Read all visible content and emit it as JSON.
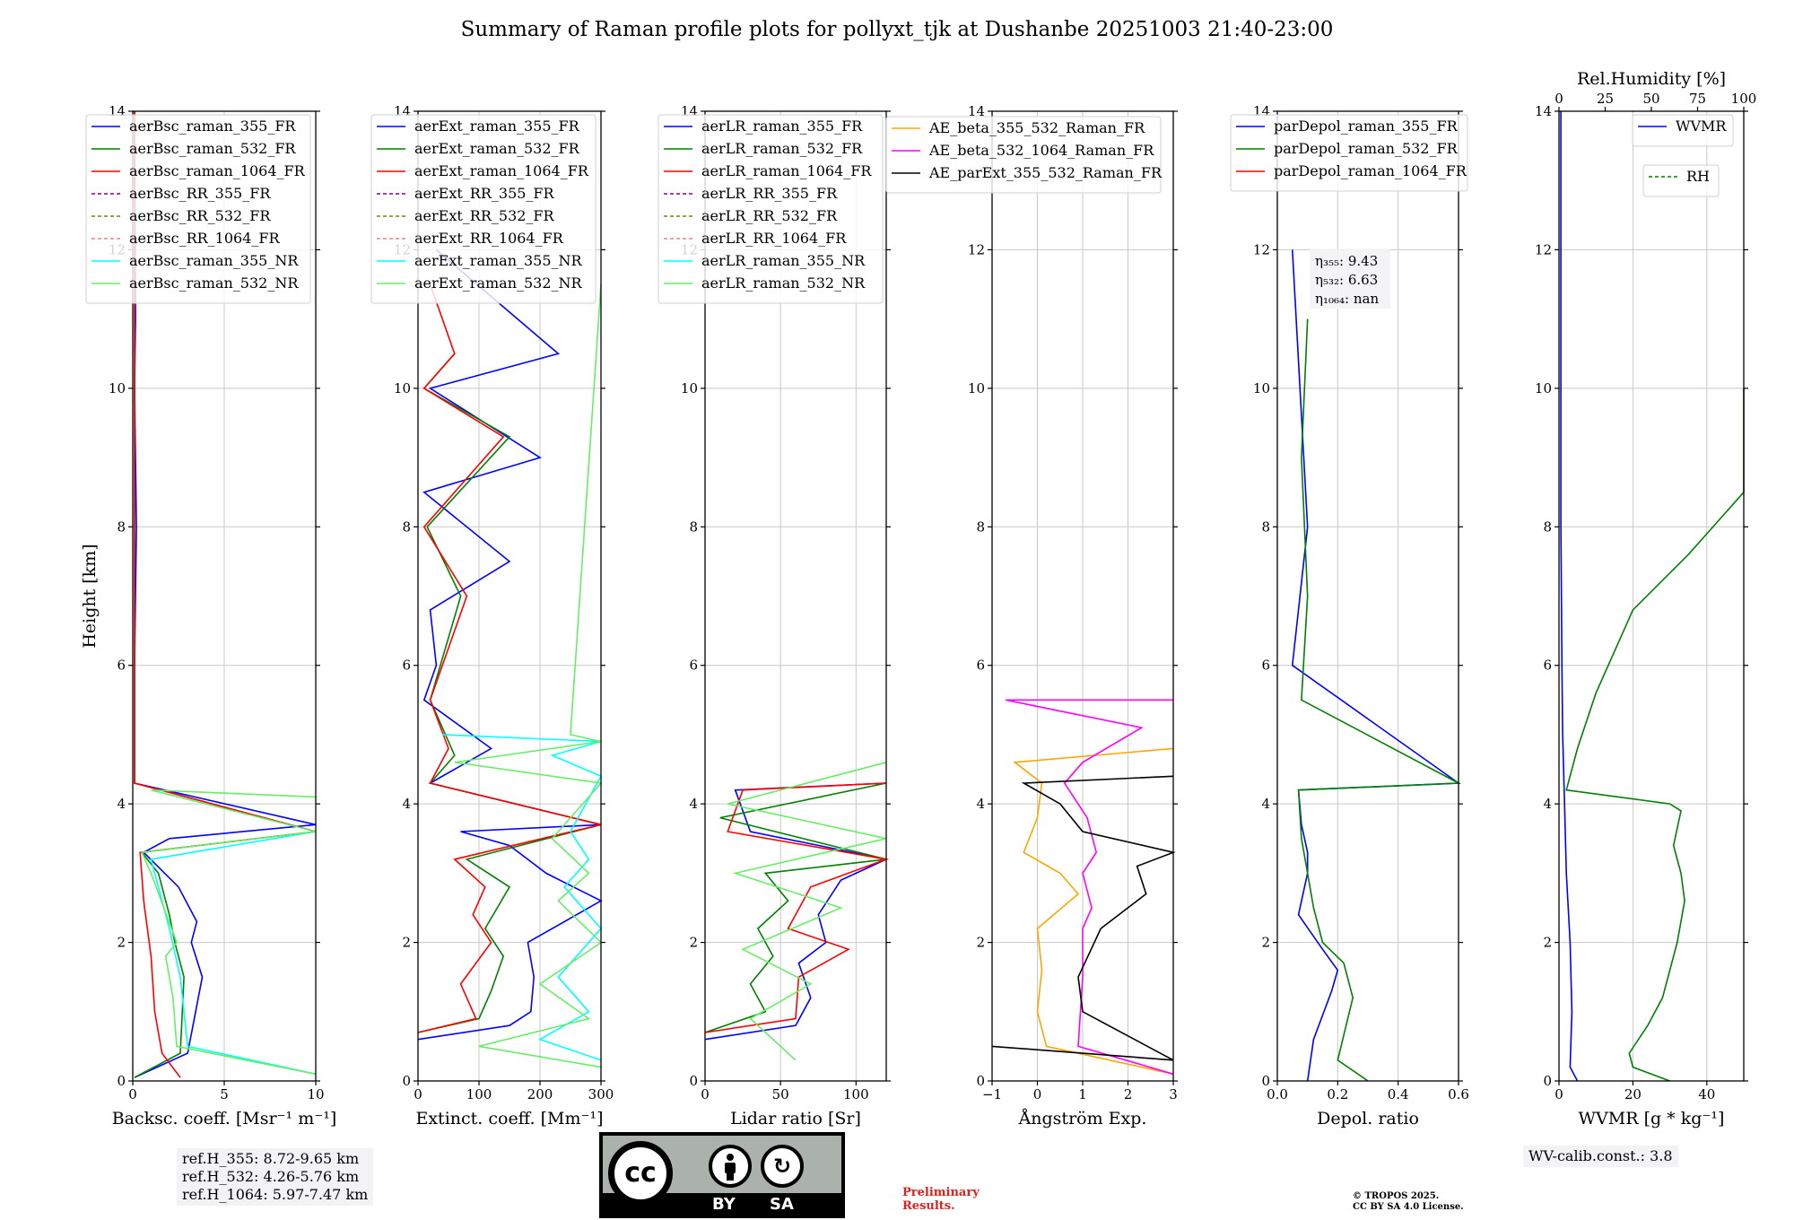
{
  "title": "Summary of Raman profile plots for pollyxt_tjk at Dushanbe 20251003 21:40-23:00",
  "chart_data": [
    {
      "type": "line",
      "id": "bsc",
      "xlabel": "Backsc. coeff. [Msr⁻¹ m⁻¹]",
      "ylabel": "Height [km]",
      "xlim": [
        0,
        10
      ],
      "ylim": [
        0,
        14
      ],
      "xticks": [
        0,
        5,
        10
      ],
      "yticks": [
        0,
        2,
        4,
        6,
        8,
        10,
        12,
        14
      ],
      "grid": true,
      "legend": "top",
      "series": [
        {
          "name": "aerBsc_raman_355_FR",
          "color": "#0000ff",
          "dash": false,
          "x": [
            0.1,
            3.0,
            3.8,
            3.2,
            3.5,
            2.5,
            0.6,
            2.0,
            10.0,
            0.1,
            0.1,
            0.2,
            0.1,
            0.15,
            0.1
          ],
          "y": [
            0.05,
            0.4,
            1.5,
            2.0,
            2.3,
            2.8,
            3.3,
            3.5,
            3.7,
            4.3,
            6.0,
            8.0,
            10.0,
            11.0,
            14.0
          ]
        },
        {
          "name": "aerBsc_raman_532_FR",
          "color": "#008000",
          "dash": false,
          "x": [
            0.1,
            2.6,
            2.8,
            2.3,
            2.0,
            1.4,
            0.5,
            10.0,
            0.1,
            0.1,
            0.1
          ],
          "y": [
            0.05,
            0.4,
            1.5,
            2.0,
            2.4,
            3.0,
            3.3,
            3.6,
            4.3,
            8.0,
            14.0
          ]
        },
        {
          "name": "aerBsc_raman_1064_FR",
          "color": "#ff0000",
          "dash": false,
          "x": [
            2.6,
            1.6,
            1.2,
            1.0,
            0.6,
            0.4,
            10.0,
            0.1,
            0.1,
            0.1
          ],
          "y": [
            0.05,
            0.4,
            1.0,
            1.8,
            2.6,
            3.3,
            3.6,
            4.3,
            8.0,
            14.0
          ]
        },
        {
          "name": "aerBsc_RR_355_FR",
          "color": "#800080",
          "dash": true,
          "x": [],
          "y": []
        },
        {
          "name": "aerBsc_RR_532_FR",
          "color": "#808000",
          "dash": true,
          "x": [],
          "y": []
        },
        {
          "name": "aerBsc_RR_1064_FR",
          "color": "#f08080",
          "dash": true,
          "x": [],
          "y": []
        },
        {
          "name": "aerBsc_raman_355_NR",
          "color": "#00ffff",
          "dash": false,
          "x": [
            10.0,
            3.0,
            2.6,
            2.0,
            1.0,
            10.0
          ],
          "y": [
            0.1,
            0.5,
            1.5,
            2.2,
            3.2,
            3.6
          ]
        },
        {
          "name": "aerBsc_raman_532_NR",
          "color": "#66ee66",
          "dash": false,
          "x": [
            10.0,
            2.4,
            2.2,
            1.8,
            2.4,
            1.0,
            0.5,
            10.0,
            1.0,
            10.0
          ],
          "y": [
            0.1,
            0.5,
            1.2,
            1.8,
            2.0,
            3.0,
            3.3,
            3.6,
            4.2,
            4.1
          ]
        }
      ]
    },
    {
      "type": "line",
      "id": "ext",
      "xlabel": "Extinct. coeff. [Mm⁻¹]",
      "xlim": [
        0,
        300
      ],
      "ylim": [
        0,
        14
      ],
      "xticks": [
        0,
        100,
        200,
        300
      ],
      "yticks": [
        0,
        2,
        4,
        6,
        8,
        10,
        12,
        14
      ],
      "grid": true,
      "legend": "top",
      "series": [
        {
          "name": "aerExt_raman_355_FR",
          "color": "#0000ff",
          "dash": false,
          "x": [
            0,
            150,
            185,
            190,
            180,
            300,
            210,
            150,
            70,
            300,
            20,
            120,
            10,
            30,
            20,
            150,
            10,
            200,
            20,
            230,
            30
          ],
          "y": [
            0.6,
            0.8,
            1.0,
            1.5,
            2.0,
            2.6,
            3.0,
            3.4,
            3.6,
            3.7,
            4.3,
            4.8,
            5.5,
            6.0,
            6.8,
            7.5,
            8.5,
            9.0,
            10.0,
            10.5,
            12.0
          ]
        },
        {
          "name": "aerExt_raman_532_FR",
          "color": "#008000",
          "dash": false,
          "x": [
            0,
            100,
            120,
            140,
            110,
            150,
            80,
            300,
            20,
            60,
            20,
            70,
            15,
            150,
            10,
            60
          ],
          "y": [
            0.7,
            0.9,
            1.3,
            1.8,
            2.2,
            2.8,
            3.2,
            3.7,
            4.3,
            4.7,
            5.5,
            7.0,
            8.0,
            9.3,
            10.0,
            10.5
          ]
        },
        {
          "name": "aerExt_raman_1064_FR",
          "color": "#ff0000",
          "dash": false,
          "x": [
            0,
            95,
            70,
            120,
            90,
            110,
            60,
            300,
            20,
            50,
            20,
            80,
            10,
            140,
            10,
            60,
            20
          ],
          "y": [
            0.7,
            0.9,
            1.4,
            2.0,
            2.4,
            2.8,
            3.2,
            3.7,
            4.3,
            4.8,
            5.5,
            7.0,
            8.0,
            9.3,
            10.0,
            10.5,
            11.5
          ]
        },
        {
          "name": "aerExt_RR_355_FR",
          "color": "#800080",
          "dash": true,
          "x": [],
          "y": []
        },
        {
          "name": "aerExt_RR_532_FR",
          "color": "#808000",
          "dash": true,
          "x": [],
          "y": []
        },
        {
          "name": "aerExt_RR_1064_FR",
          "color": "#f08080",
          "dash": true,
          "x": [],
          "y": []
        },
        {
          "name": "aerExt_raman_355_NR",
          "color": "#00ffff",
          "dash": false,
          "x": [
            300,
            200,
            280,
            230,
            300,
            240,
            280,
            250,
            300,
            220,
            300,
            40
          ],
          "y": [
            0.3,
            0.6,
            1.0,
            1.5,
            2.2,
            2.8,
            3.2,
            3.6,
            4.4,
            4.7,
            4.9,
            5.0
          ]
        },
        {
          "name": "aerExt_raman_532_NR",
          "color": "#66ee66",
          "dash": false,
          "x": [
            300,
            100,
            280,
            200,
            300,
            230,
            280,
            220,
            300,
            60,
            300,
            250,
            300
          ],
          "y": [
            0.2,
            0.5,
            0.9,
            1.4,
            2.0,
            2.6,
            3.0,
            3.5,
            4.3,
            4.6,
            4.9,
            5.0,
            11.5
          ]
        }
      ]
    },
    {
      "type": "line",
      "id": "lr",
      "xlabel": "Lidar ratio [Sr]",
      "xlim": [
        0,
        120
      ],
      "ylim": [
        0,
        14
      ],
      "xticks": [
        0,
        50,
        100
      ],
      "yticks": [
        0,
        2,
        4,
        6,
        8,
        10,
        12,
        14
      ],
      "grid": true,
      "legend": "top",
      "series": [
        {
          "name": "aerLR_raman_355_FR",
          "color": "#0000ff",
          "dash": false,
          "x": [
            0,
            60,
            70,
            62,
            80,
            75,
            90,
            120,
            30,
            20,
            120
          ],
          "y": [
            0.6,
            0.8,
            1.2,
            1.7,
            2.0,
            2.4,
            2.9,
            3.2,
            3.6,
            4.2,
            4.3
          ]
        },
        {
          "name": "aerLR_raman_532_FR",
          "color": "#008000",
          "dash": false,
          "x": [
            0,
            40,
            30,
            45,
            35,
            55,
            40,
            120,
            10,
            120
          ],
          "y": [
            0.7,
            1.0,
            1.4,
            1.8,
            2.2,
            2.6,
            3.0,
            3.2,
            3.8,
            4.3
          ]
        },
        {
          "name": "aerLR_raman_1064_FR",
          "color": "#ff0000",
          "dash": false,
          "x": [
            0,
            60,
            62,
            95,
            55,
            70,
            120,
            15,
            25,
            120
          ],
          "y": [
            0.7,
            0.9,
            1.5,
            1.9,
            2.2,
            2.8,
            3.2,
            3.6,
            4.2,
            4.3
          ]
        },
        {
          "name": "aerLR_RR_355_FR",
          "color": "#800080",
          "dash": true,
          "x": [],
          "y": []
        },
        {
          "name": "aerLR_RR_532_FR",
          "color": "#808000",
          "dash": true,
          "x": [],
          "y": []
        },
        {
          "name": "aerLR_RR_1064_FR",
          "color": "#f08080",
          "dash": true,
          "x": [],
          "y": []
        },
        {
          "name": "aerLR_raman_355_NR",
          "color": "#00ffff",
          "dash": false,
          "x": [],
          "y": []
        },
        {
          "name": "aerLR_raman_532_NR",
          "color": "#66ee66",
          "dash": false,
          "x": [
            60,
            30,
            70,
            25,
            90,
            20,
            120,
            15,
            120
          ],
          "y": [
            0.3,
            0.9,
            1.4,
            1.9,
            2.5,
            3.0,
            3.5,
            4.0,
            4.6
          ]
        }
      ]
    },
    {
      "type": "line",
      "id": "ae",
      "xlabel": "Ångström Exp.",
      "xlim": [
        -1,
        3
      ],
      "ylim": [
        0,
        14
      ],
      "xticks": [
        -1,
        0,
        1,
        2,
        3
      ],
      "yticks": [
        0,
        2,
        4,
        6,
        8,
        10,
        12,
        14
      ],
      "grid": true,
      "legend": "top",
      "series": [
        {
          "name": "AE_beta_355_532_Raman_FR",
          "color": "#ffa500",
          "dash": false,
          "x": [
            3.0,
            0.2,
            0.0,
            0.1,
            0.0,
            0.9,
            0.5,
            -0.3,
            0.0,
            0.1,
            -0.5,
            3.0
          ],
          "y": [
            0.1,
            0.5,
            1.0,
            1.6,
            2.2,
            2.7,
            3.0,
            3.3,
            3.8,
            4.3,
            4.6,
            4.8
          ]
        },
        {
          "name": "AE_beta_532_1064_Raman_FR",
          "color": "#ff00ff",
          "dash": false,
          "x": [
            3.0,
            0.9,
            1.0,
            1.0,
            1.2,
            1.0,
            1.3,
            1.1,
            0.6,
            1.0,
            2.3,
            -0.7,
            3.0
          ],
          "y": [
            0.1,
            0.5,
            1.5,
            2.2,
            2.5,
            3.0,
            3.3,
            3.8,
            4.3,
            4.6,
            5.1,
            5.5,
            5.5
          ]
        },
        {
          "name": "AE_parExt_355_532_Raman_FR",
          "color": "#000000",
          "dash": false,
          "x": [
            -1.0,
            3.0,
            1.0,
            0.9,
            1.4,
            2.4,
            2.2,
            3.0,
            1.0,
            0.5,
            -0.3,
            3.0
          ],
          "y": [
            0.5,
            0.3,
            1.0,
            1.5,
            2.2,
            2.7,
            3.1,
            3.3,
            3.6,
            4.0,
            4.3,
            4.4
          ]
        }
      ]
    },
    {
      "type": "line",
      "id": "depol",
      "xlabel": "Depol. ratio",
      "xlim": [
        0,
        0.6
      ],
      "ylim": [
        0,
        14
      ],
      "xticks": [
        0.0,
        0.2,
        0.4,
        0.6
      ],
      "yticks": [
        0,
        2,
        4,
        6,
        8,
        10,
        12,
        14
      ],
      "grid": true,
      "legend": "top",
      "annotation": [
        "η₃₅₅: 9.43",
        "η₅₃₂: 6.63",
        "η₁₀₆₄: nan"
      ],
      "series": [
        {
          "name": "parDepol_raman_355_FR",
          "color": "#0000ff",
          "dash": false,
          "x": [
            0.1,
            0.12,
            0.18,
            0.2,
            0.15,
            0.07,
            0.1,
            0.1,
            0.08,
            0.07,
            0.6,
            0.05,
            0.1,
            0.05
          ],
          "y": [
            0.0,
            0.6,
            1.3,
            1.6,
            1.9,
            2.4,
            3.0,
            3.3,
            3.7,
            4.2,
            4.3,
            6.0,
            8.0,
            12.0
          ]
        },
        {
          "name": "parDepol_raman_532_FR",
          "color": "#008000",
          "dash": false,
          "x": [
            0.3,
            0.2,
            0.25,
            0.22,
            0.15,
            0.12,
            0.1,
            0.08,
            0.07,
            0.6,
            0.08,
            0.1,
            0.08,
            0.1
          ],
          "y": [
            0.0,
            0.3,
            1.2,
            1.7,
            2.0,
            2.5,
            3.0,
            3.5,
            4.2,
            4.3,
            5.5,
            7.0,
            9.0,
            11.0
          ]
        },
        {
          "name": "parDepol_raman_1064_FR",
          "color": "#ff0000",
          "dash": false,
          "x": [],
          "y": []
        }
      ]
    },
    {
      "type": "line",
      "id": "wv",
      "xlabel": "WVMR [g * kg⁻¹]",
      "xlabel_top": "Rel.Humidity [%]",
      "xlim": [
        0,
        50
      ],
      "ylim": [
        0,
        14
      ],
      "xticks": [
        0,
        20,
        40
      ],
      "xticks_top": [
        0,
        25,
        50,
        75,
        100
      ],
      "yticks": [
        0,
        2,
        4,
        6,
        8,
        10,
        12,
        14
      ],
      "grid": true,
      "legend": "top-right",
      "series": [
        {
          "name": "WVMR",
          "color": "#0000ff",
          "dash": false,
          "x": [
            5,
            3,
            3.5,
            3.0,
            2.0,
            1.5,
            1.0,
            0.8,
            0.5,
            0.5
          ],
          "y": [
            0.0,
            0.2,
            1.0,
            2.0,
            3.0,
            4.0,
            5.0,
            6.0,
            8.0,
            14.0
          ]
        },
        {
          "name": "RH",
          "color": "#008000",
          "dash": true,
          "x": [
            30,
            20,
            19,
            24,
            28,
            30,
            32,
            34,
            33,
            31,
            33,
            30,
            2,
            5,
            10,
            15,
            20,
            35,
            50,
            58,
            50
          ],
          "y": [
            0.0,
            0.2,
            0.4,
            0.8,
            1.2,
            1.6,
            2.0,
            2.6,
            3.0,
            3.4,
            3.9,
            4.0,
            4.2,
            4.8,
            5.6,
            6.2,
            6.8,
            7.6,
            8.5,
            9.5,
            10.0
          ]
        }
      ]
    }
  ],
  "refs": [
    "ref.H_355: 8.72-9.65 km",
    "ref.H_532: 4.26-5.76 km",
    "ref.H_1064: 5.97-7.47 km"
  ],
  "wv_calib": "WV-calib.const.: 3.8",
  "prelim": [
    "Preliminary",
    "Results."
  ],
  "tropos": [
    "© TROPOS 2025.",
    "CC BY SA 4.0 License."
  ],
  "license": {
    "cc": "cc",
    "by": "BY",
    "sa": "SA"
  }
}
